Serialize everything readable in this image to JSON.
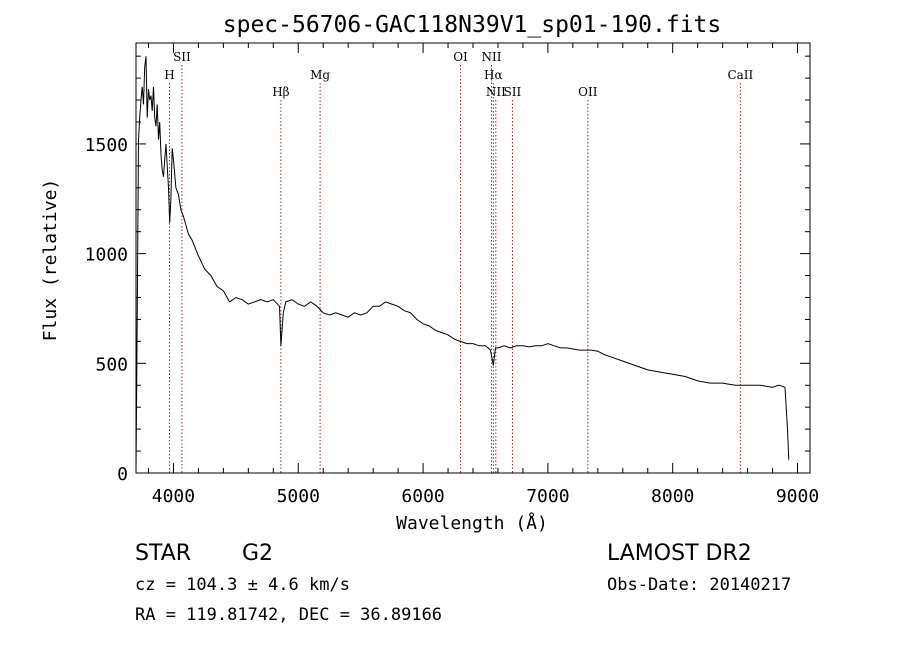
{
  "chart_data": {
    "type": "line",
    "title": "spec-56706-GAC118N39V1_sp01-190.fits",
    "xlabel": "Wavelength (Å)",
    "ylabel": "Flux (relative)",
    "xlim": [
      3700,
      9100
    ],
    "ylim": [
      0,
      1960
    ],
    "xticks": [
      4000,
      5000,
      6000,
      7000,
      8000,
      9000
    ],
    "yticks": [
      0,
      500,
      1000,
      1500
    ],
    "grid": false,
    "line_color": "#000000",
    "marker_color": "#b22222",
    "series": [
      {
        "x": [
          3700,
          3710,
          3720,
          3730,
          3740,
          3750,
          3760,
          3770,
          3780,
          3790,
          3800,
          3810,
          3820,
          3830,
          3840,
          3850,
          3860,
          3870,
          3880,
          3890,
          3900,
          3910,
          3920,
          3930,
          3940,
          3950,
          3960,
          3970,
          3980,
          3990,
          4000,
          4020,
          4040,
          4060,
          4080,
          4100,
          4120,
          4150,
          4200,
          4250,
          4300,
          4350,
          4400,
          4450,
          4500,
          4550,
          4600,
          4650,
          4700,
          4750,
          4800,
          4850,
          4861,
          4880,
          4900,
          4950,
          5000,
          5050,
          5100,
          5150,
          5200,
          5250,
          5300,
          5350,
          5400,
          5450,
          5500,
          5550,
          5600,
          5650,
          5700,
          5750,
          5800,
          5850,
          5900,
          5950,
          6000,
          6050,
          6100,
          6150,
          6200,
          6250,
          6300,
          6350,
          6400,
          6450,
          6500,
          6540,
          6563,
          6580,
          6600,
          6650,
          6700,
          6750,
          6800,
          6850,
          6900,
          6950,
          7000,
          7050,
          7100,
          7150,
          7200,
          7250,
          7300,
          7350,
          7400,
          7450,
          7500,
          7600,
          7700,
          7800,
          7900,
          8000,
          8100,
          8200,
          8300,
          8400,
          8500,
          8600,
          8700,
          8800,
          8850,
          8880,
          8900,
          8920,
          8930
        ],
        "y": [
          0,
          700,
          1520,
          1620,
          1700,
          1760,
          1680,
          1850,
          1900,
          1620,
          1750,
          1700,
          1720,
          1650,
          1760,
          1620,
          1580,
          1680,
          1520,
          1600,
          1450,
          1380,
          1350,
          1430,
          1500,
          1400,
          1300,
          1140,
          1250,
          1480,
          1430,
          1300,
          1270,
          1200,
          1170,
          1130,
          1090,
          1060,
          990,
          930,
          900,
          850,
          830,
          780,
          800,
          790,
          770,
          780,
          790,
          780,
          790,
          760,
          580,
          730,
          780,
          790,
          770,
          760,
          780,
          760,
          730,
          720,
          730,
          720,
          710,
          730,
          720,
          730,
          760,
          760,
          780,
          770,
          760,
          740,
          730,
          700,
          680,
          670,
          650,
          640,
          630,
          610,
          600,
          590,
          590,
          580,
          580,
          560,
          490,
          570,
          570,
          580,
          570,
          580,
          580,
          575,
          580,
          580,
          590,
          580,
          570,
          570,
          565,
          560,
          560,
          560,
          555,
          540,
          530,
          510,
          490,
          470,
          460,
          450,
          440,
          420,
          410,
          410,
          400,
          400,
          400,
          390,
          400,
          395,
          390,
          200,
          60
        ]
      }
    ],
    "line_markers": [
      {
        "label": "H",
        "wavelength": 3968,
        "label_row": 2
      },
      {
        "label": "SII",
        "wavelength": 4068,
        "label_row": 1
      },
      {
        "label": "Hβ",
        "wavelength": 4861,
        "label_row": 3
      },
      {
        "label": "Mg",
        "wavelength": 5175,
        "label_row": 2
      },
      {
        "label": "OI",
        "wavelength": 6300,
        "label_row": 1
      },
      {
        "label": "NII",
        "wavelength": 6548,
        "label_row": 1
      },
      {
        "label": "Hα",
        "wavelength": 6563,
        "label_row": 2
      },
      {
        "label": "NII",
        "wavelength": 6583,
        "label_row": 3
      },
      {
        "label": "SII",
        "wavelength": 6716,
        "label_row": 3
      },
      {
        "label": "OII",
        "wavelength": 7320,
        "label_row": 3
      },
      {
        "label": "CaII",
        "wavelength": 8542,
        "label_row": 2
      }
    ]
  },
  "info": {
    "object_class": "STAR",
    "subclass": "G2",
    "survey": "LAMOST DR2",
    "redshift_text": "cz = 104.3 ± 4.6 km/s",
    "coords_text": "RA = 119.81742, DEC =  36.89166",
    "obs_date_text": "Obs-Date: 20140217"
  }
}
